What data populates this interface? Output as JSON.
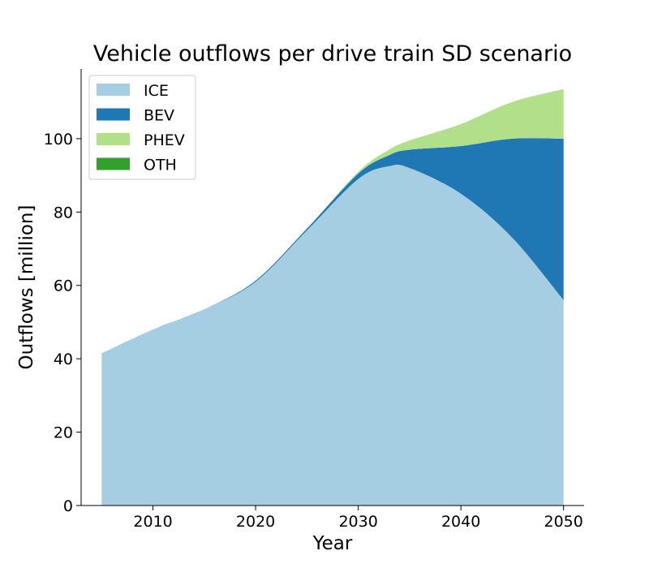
{
  "chart_data": {
    "type": "area",
    "stacked": true,
    "title": "Vehicle outflows per drive train SD scenario",
    "xlabel": "Year",
    "ylabel": "Outflows [million]",
    "xlim": [
      2003,
      2052
    ],
    "ylim": [
      0,
      119
    ],
    "xticks": [
      2010,
      2020,
      2030,
      2040,
      2050
    ],
    "yticks": [
      0,
      20,
      40,
      60,
      80,
      100
    ],
    "legend_position": "top-left",
    "grid": false,
    "x": [
      2005,
      2010,
      2015,
      2020,
      2025,
      2030,
      2033,
      2035,
      2040,
      2045,
      2050
    ],
    "series": [
      {
        "name": "ICE",
        "color": "#a6cee3",
        "values": [
          41.5,
          48,
          53.5,
          61,
          75,
          89,
          92.5,
          92,
          85,
          73,
          56
        ]
      },
      {
        "name": "BEV",
        "color": "#1f78b4",
        "values": [
          0,
          0,
          0,
          0.3,
          0.5,
          1.5,
          3,
          5,
          13,
          27,
          44
        ]
      },
      {
        "name": "PHEV",
        "color": "#b2df8a",
        "values": [
          0,
          0,
          0,
          0,
          0,
          0.5,
          1.5,
          2.5,
          6,
          10,
          13.5
        ]
      },
      {
        "name": "OTH",
        "color": "#33a02c",
        "values": [
          0,
          0,
          0,
          0,
          0,
          0,
          0,
          0,
          0,
          0,
          0
        ]
      }
    ]
  }
}
